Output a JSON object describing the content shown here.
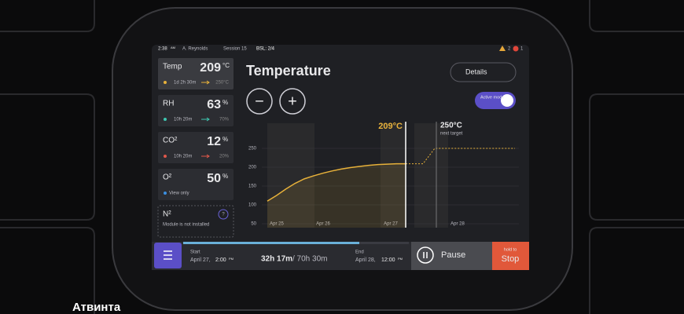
{
  "status": {
    "time": "2:38",
    "ampm": "AM",
    "user": "A. Reynolds",
    "session": "Session 15",
    "bsl": "BSL: 2/4",
    "warnings": "2",
    "errors": "1"
  },
  "cards": [
    {
      "label": "Temp",
      "value": "209",
      "unit": "°C",
      "elapsed": "1d 2h 30m",
      "target": "250°C"
    },
    {
      "label": "RH",
      "value": "63",
      "unit": "%",
      "elapsed": "10h 20m",
      "target": "70%"
    },
    {
      "label": "CO²",
      "value": "12",
      "unit": "%",
      "elapsed": "10h 20m",
      "target": "20%"
    },
    {
      "label": "O²",
      "value": "50",
      "unit": "%",
      "note": "View only"
    },
    {
      "label": "N²",
      "help": "?",
      "note": "Module is not installed"
    }
  ],
  "header": {
    "title": "Temperature",
    "details": "Details",
    "mode": "Active mode",
    "minus": "−",
    "plus": "+"
  },
  "chart_data": {
    "type": "line",
    "current_label": "209°C",
    "target_label": "250°C",
    "target_note": "next target",
    "xticks": [
      "Apr 25",
      "Apr 26",
      "Apr 27",
      "Apr 28"
    ],
    "ylim": [
      50,
      250
    ],
    "yticks": [
      50,
      100,
      150,
      200,
      250
    ],
    "grid": true,
    "series": [
      {
        "name": "Actual",
        "color": "#e7b13a",
        "values": [
          110,
          125,
          142,
          157,
          169,
          177,
          184,
          190,
          195,
          199,
          202,
          205,
          207,
          208,
          209,
          209
        ]
      },
      {
        "name": "Planned",
        "color": "#e7b13a",
        "values": [
          209,
          209,
          250,
          250
        ]
      }
    ]
  },
  "footer": {
    "start_label": "Start",
    "start_date": "April 27,",
    "start_time": "2:00",
    "start_ampm": "PM",
    "elapsed": "32h 17m",
    "total": "/ 70h 30m",
    "end_label": "End",
    "end_date": "April 28,",
    "end_time": "12:00",
    "end_ampm": "PM",
    "pause": "Pause",
    "stop_hint": "hold to",
    "stop": "Stop"
  },
  "brand": "Атвинта"
}
